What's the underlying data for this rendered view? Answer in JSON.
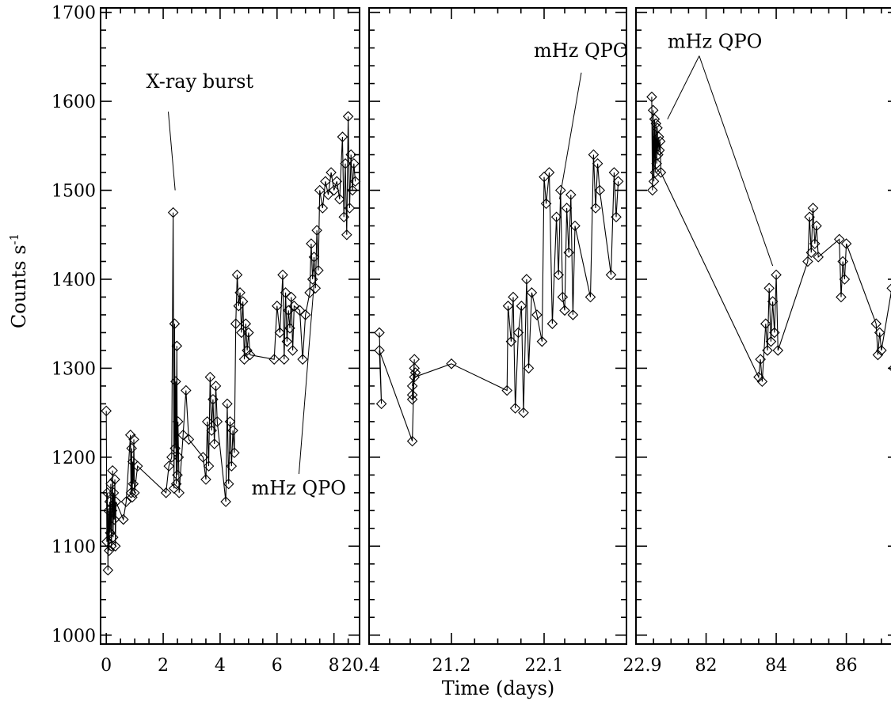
{
  "chart_data": {
    "type": "scatter",
    "connected": true,
    "marker": "diamond",
    "xlabel": "Time (days)",
    "ylabel": "Counts s",
    "ylabel_superscript": "-1",
    "ylim": [
      990,
      1705
    ],
    "yticks": [
      1000,
      1100,
      1200,
      1300,
      1400,
      1500,
      1600,
      1700
    ],
    "grid": false,
    "panels": [
      {
        "xlim": [
          -0.2,
          8.9
        ],
        "xticks": [
          0,
          2,
          4,
          6,
          8
        ],
        "xtick_labels": [
          "0",
          "2",
          "4",
          "6",
          "8"
        ],
        "annotations": [
          {
            "text": "X-ray burst",
            "x": 1.4,
            "y": 1615,
            "point_x": 2.42,
            "point_y": 1500
          },
          {
            "text": "mHz QPO",
            "x": 5.1,
            "y": 1158,
            "point_x": 7.3,
            "point_y": 1395
          }
        ],
        "series": {
          "x": [
            0.0,
            0.02,
            0.04,
            0.06,
            0.08,
            0.1,
            0.12,
            0.14,
            0.16,
            0.18,
            0.2,
            0.22,
            0.24,
            0.26,
            0.28,
            0.3,
            0.32,
            0.34,
            0.6,
            0.7,
            0.85,
            0.87,
            0.89,
            0.91,
            0.93,
            0.95,
            0.97,
            0.99,
            1.1,
            2.1,
            2.2,
            2.3,
            2.35,
            2.38,
            2.4,
            2.42,
            2.44,
            2.46,
            2.48,
            2.5,
            2.52,
            2.54,
            2.56,
            2.7,
            2.8,
            2.9,
            3.4,
            3.5,
            3.55,
            3.6,
            3.65,
            3.7,
            3.75,
            3.8,
            3.85,
            3.9,
            4.2,
            4.25,
            4.3,
            4.35,
            4.4,
            4.45,
            4.5,
            4.55,
            4.6,
            4.65,
            4.7,
            4.75,
            4.8,
            4.85,
            4.9,
            4.95,
            5.0,
            5.05,
            5.9,
            6.0,
            6.1,
            6.2,
            6.25,
            6.3,
            6.35,
            6.4,
            6.45,
            6.5,
            6.55,
            6.6,
            6.8,
            6.9,
            7.0,
            7.15,
            7.2,
            7.25,
            7.3,
            7.35,
            7.4,
            7.45,
            7.5,
            7.6,
            7.7,
            7.8,
            7.9,
            8.0,
            8.1,
            8.2,
            8.3,
            8.35,
            8.4,
            8.45,
            8.5,
            8.55,
            8.6,
            8.65,
            8.7,
            8.75
          ],
          "values": [
            1252,
            1105,
            1160,
            1073,
            1140,
            1095,
            1150,
            1115,
            1170,
            1100,
            1140,
            1185,
            1110,
            1160,
            1130,
            1175,
            1100,
            1150,
            1130,
            1150,
            1225,
            1160,
            1210,
            1155,
            1195,
            1170,
            1220,
            1160,
            1190,
            1160,
            1190,
            1200,
            1475,
            1165,
            1350,
            1210,
            1285,
            1170,
            1325,
            1180,
            1240,
            1200,
            1160,
            1225,
            1275,
            1220,
            1200,
            1175,
            1240,
            1190,
            1290,
            1230,
            1265,
            1215,
            1280,
            1240,
            1150,
            1260,
            1170,
            1240,
            1190,
            1230,
            1205,
            1350,
            1405,
            1370,
            1385,
            1340,
            1375,
            1310,
            1350,
            1320,
            1340,
            1315,
            1310,
            1370,
            1340,
            1405,
            1310,
            1385,
            1330,
            1365,
            1345,
            1380,
            1320,
            1370,
            1365,
            1310,
            1360,
            1385,
            1440,
            1400,
            1425,
            1390,
            1455,
            1410,
            1500,
            1480,
            1510,
            1495,
            1520,
            1500,
            1510,
            1490,
            1560,
            1470,
            1530,
            1450,
            1583,
            1480,
            1540,
            1500,
            1530,
            1510
          ]
        }
      },
      {
        "xlim": [
          20.4,
          22.9
        ],
        "xticks": [
          20.4,
          21.2,
          22.1,
          22.9
        ],
        "xtick_labels": [
          "20.4",
          "21.2",
          "22.1",
          "22.9"
        ],
        "annotations": [
          {
            "text": "mHz QPO",
            "x": 22.0,
            "y": 1650,
            "point_x": 22.25,
            "point_y": 1490
          }
        ],
        "series": {
          "x": [
            20.5,
            20.52,
            20.5,
            20.82,
            20.84,
            20.82,
            20.85,
            20.82,
            20.84,
            20.82,
            20.84,
            21.2,
            21.74,
            21.75,
            21.78,
            21.8,
            21.82,
            21.85,
            21.88,
            21.9,
            21.93,
            21.95,
            21.98,
            22.03,
            22.08,
            22.1,
            22.12,
            22.15,
            22.18,
            22.22,
            22.24,
            22.26,
            22.28,
            22.3,
            22.32,
            22.34,
            22.36,
            22.38,
            22.4,
            22.55,
            22.58,
            22.6,
            22.62,
            22.64,
            22.75,
            22.78,
            22.8,
            22.82
          ],
          "values": [
            1340,
            1260,
            1320,
            1218,
            1310,
            1270,
            1295,
            1280,
            1300,
            1265,
            1290,
            1305,
            1275,
            1370,
            1330,
            1380,
            1255,
            1340,
            1370,
            1250,
            1400,
            1300,
            1385,
            1360,
            1330,
            1515,
            1485,
            1520,
            1350,
            1470,
            1405,
            1500,
            1380,
            1365,
            1480,
            1430,
            1495,
            1360,
            1460,
            1380,
            1540,
            1480,
            1530,
            1500,
            1405,
            1520,
            1470,
            1510
          ]
        }
      },
      {
        "xlim": [
          80.0,
          87.5
        ],
        "xticks": [
          80.0,
          82,
          84,
          86
        ],
        "xtick_labels": [
          "",
          "82",
          "84",
          "86"
        ],
        "annotations": [
          {
            "text": "mHz QPO",
            "x": 80.9,
            "y": 1660,
            "point_x": 80.9,
            "point_y": 1580
          },
          {
            "text": "",
            "x": 80.9,
            "y": 1660,
            "point_x": 83.9,
            "point_y": 1415
          }
        ],
        "series": {
          "x": [
            80.45,
            80.47,
            80.49,
            80.51,
            80.53,
            80.55,
            80.57,
            80.59,
            80.61,
            80.63,
            80.65,
            80.67,
            80.69,
            80.71,
            83.5,
            83.55,
            83.6,
            83.7,
            83.75,
            83.8,
            83.85,
            83.9,
            83.95,
            84.0,
            84.05,
            84.9,
            84.95,
            85.0,
            85.05,
            85.1,
            85.15,
            85.2,
            85.8,
            85.85,
            85.9,
            85.95,
            86.0,
            86.85,
            86.9,
            86.95,
            87.0,
            87.3,
            87.35,
            87.4,
            87.45,
            87.5
          ],
          "values": [
            1605,
            1500,
            1590,
            1510,
            1580,
            1520,
            1575,
            1530,
            1570,
            1540,
            1560,
            1545,
            1555,
            1520,
            1290,
            1310,
            1285,
            1350,
            1320,
            1390,
            1330,
            1375,
            1340,
            1405,
            1320,
            1420,
            1470,
            1430,
            1480,
            1440,
            1460,
            1425,
            1445,
            1380,
            1420,
            1400,
            1440,
            1350,
            1315,
            1340,
            1320,
            1390,
            1300,
            1380,
            1330,
            1370
          ]
        }
      }
    ]
  }
}
